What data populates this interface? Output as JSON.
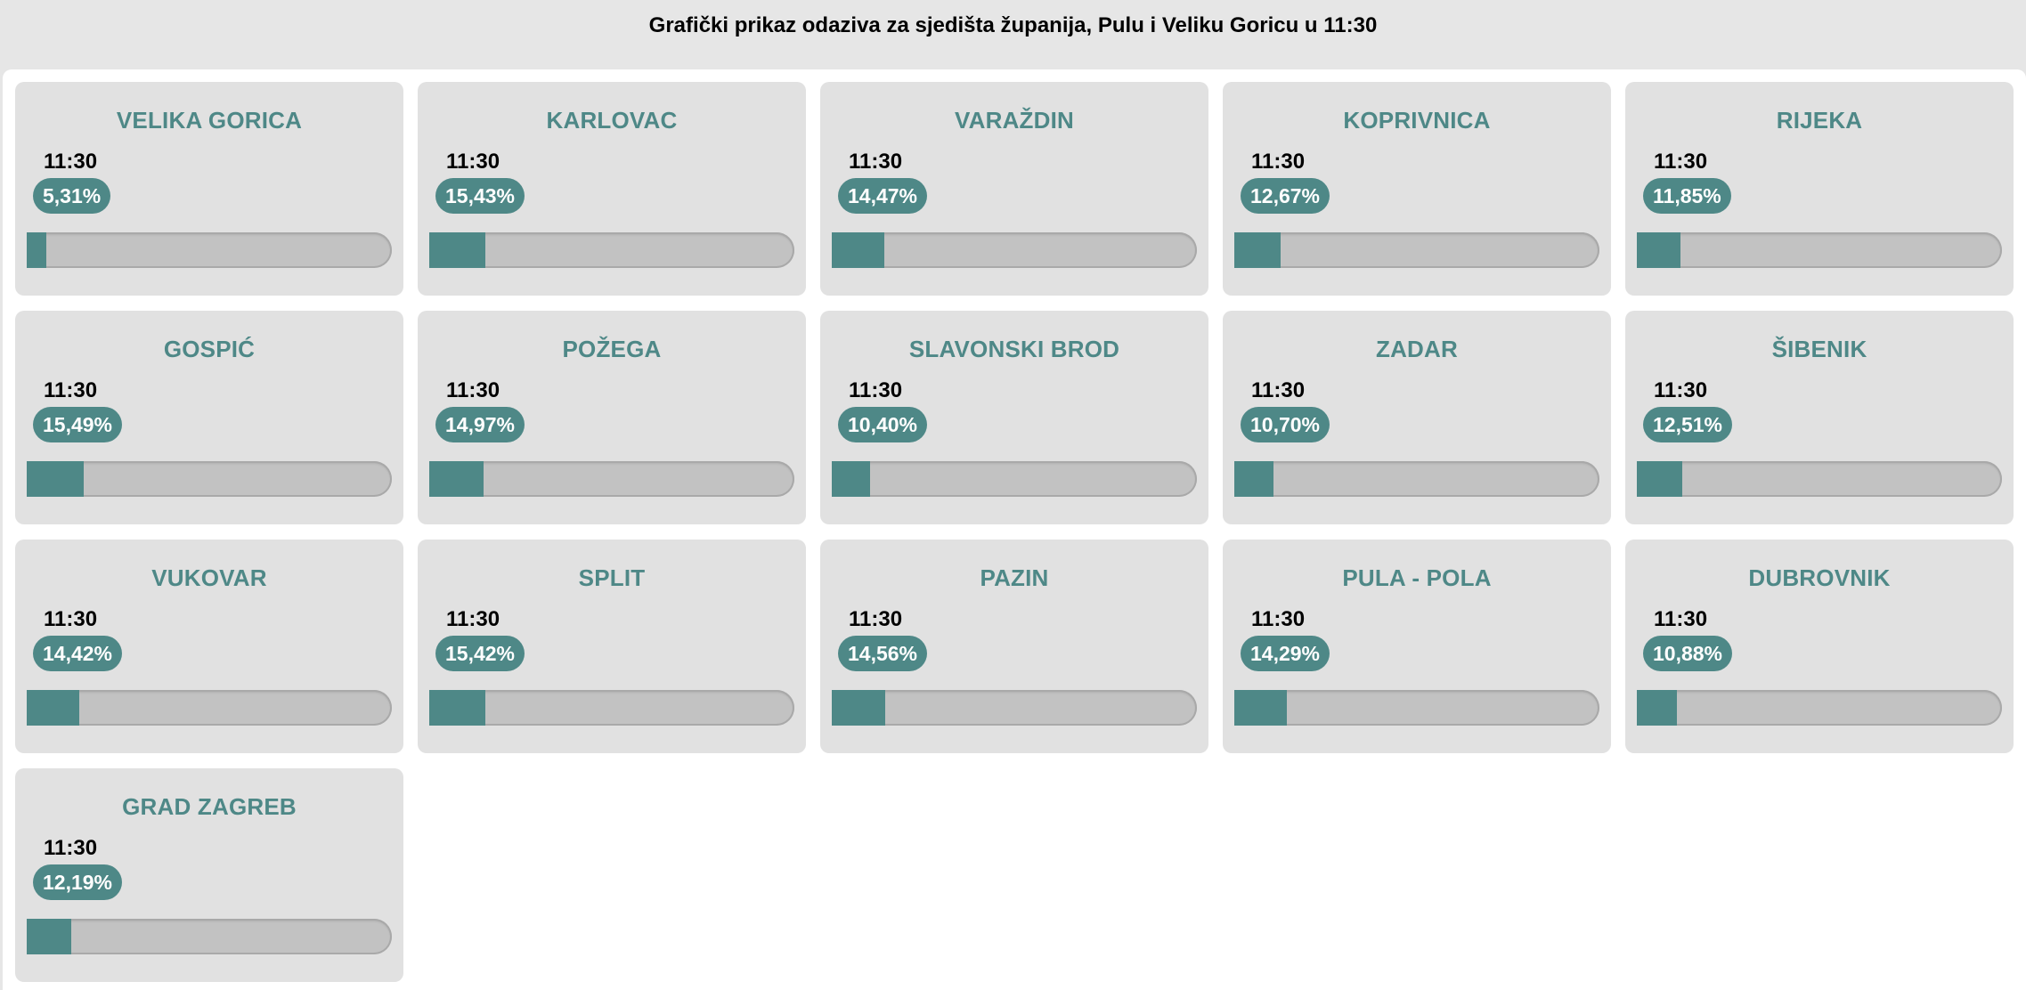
{
  "header": {
    "title": "Grafički prikaz odaziva za sjedišta županija, Pulu i Veliku Goricu u 11:30"
  },
  "colors": {
    "accent": "#4e8887",
    "card_background": "#e1e1e1",
    "bar_track": "#c2c2c2"
  },
  "cities": [
    {
      "name": "VELIKA GORICA",
      "time": "11:30",
      "turnout": "5,31%",
      "fill_percent": 5.31
    },
    {
      "name": "KARLOVAC",
      "time": "11:30",
      "turnout": "15,43%",
      "fill_percent": 15.43
    },
    {
      "name": "VARAŽDIN",
      "time": "11:30",
      "turnout": "14,47%",
      "fill_percent": 14.47
    },
    {
      "name": "KOPRIVNICA",
      "time": "11:30",
      "turnout": "12,67%",
      "fill_percent": 12.67
    },
    {
      "name": "RIJEKA",
      "time": "11:30",
      "turnout": "11,85%",
      "fill_percent": 11.85
    },
    {
      "name": "GOSPIĆ",
      "time": "11:30",
      "turnout": "15,49%",
      "fill_percent": 15.49
    },
    {
      "name": "POŽEGA",
      "time": "11:30",
      "turnout": "14,97%",
      "fill_percent": 14.97
    },
    {
      "name": "SLAVONSKI BROD",
      "time": "11:30",
      "turnout": "10,40%",
      "fill_percent": 10.4
    },
    {
      "name": "ZADAR",
      "time": "11:30",
      "turnout": "10,70%",
      "fill_percent": 10.7
    },
    {
      "name": "ŠIBENIK",
      "time": "11:30",
      "turnout": "12,51%",
      "fill_percent": 12.51
    },
    {
      "name": "VUKOVAR",
      "time": "11:30",
      "turnout": "14,42%",
      "fill_percent": 14.42
    },
    {
      "name": "SPLIT",
      "time": "11:30",
      "turnout": "15,42%",
      "fill_percent": 15.42
    },
    {
      "name": "PAZIN",
      "time": "11:30",
      "turnout": "14,56%",
      "fill_percent": 14.56
    },
    {
      "name": "PULA - POLA",
      "time": "11:30",
      "turnout": "14,29%",
      "fill_percent": 14.29
    },
    {
      "name": "DUBROVNIK",
      "time": "11:30",
      "turnout": "10,88%",
      "fill_percent": 10.88
    },
    {
      "name": "GRAD ZAGREB",
      "time": "11:30",
      "turnout": "12,19%",
      "fill_percent": 12.19
    }
  ]
}
